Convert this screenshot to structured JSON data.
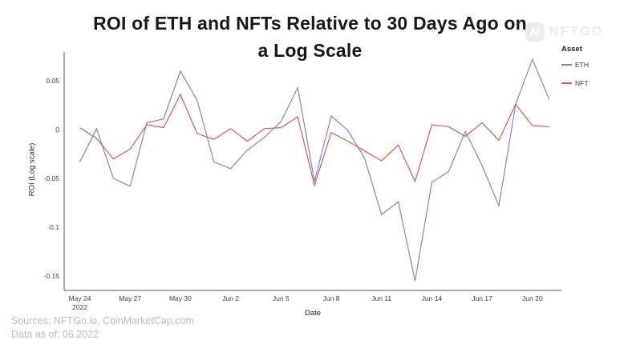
{
  "header": {
    "title_line1": "ROI of ETH and NFTs Relative to 30 Days Ago on",
    "title_line2": "a Log Scale"
  },
  "logo": {
    "icon_letter": "N",
    "text": "NFTGO"
  },
  "legend": {
    "title": "Asset",
    "items": [
      {
        "label": "ETH"
      },
      {
        "label": "NFT"
      }
    ]
  },
  "footer": {
    "sources": "Sources: NFTGo.io, CoinMarketCap.com",
    "data_as_of": "Data as of: 06.2022"
  },
  "chart_data": {
    "type": "line",
    "title": "ROI of ETH and NFTs Relative to 30 Days Ago on a Log Scale",
    "xlabel": "Date",
    "ylabel": "ROI (Log scale)",
    "grid": false,
    "legend_position": "top-right",
    "ylim": [
      -0.165,
      0.08
    ],
    "categories": [
      "May 24",
      "May 25",
      "May 26",
      "May 27",
      "May 28",
      "May 29",
      "May 30",
      "May 31",
      "Jun 1",
      "Jun 2",
      "Jun 3",
      "Jun 4",
      "Jun 5",
      "Jun 6",
      "Jun 7",
      "Jun 8",
      "Jun 9",
      "Jun 10",
      "Jun 11",
      "Jun 12",
      "Jun 13",
      "Jun 14",
      "Jun 15",
      "Jun 16",
      "Jun 17",
      "Jun 18",
      "Jun 19",
      "Jun 20",
      "Jun 21"
    ],
    "series": [
      {
        "name": "ETH",
        "color": "#7e83d6",
        "values": [
          -0.033,
          0.001,
          -0.05,
          -0.058,
          0.007,
          0.011,
          0.06,
          0.03,
          -0.033,
          -0.04,
          -0.021,
          -0.008,
          0.008,
          0.043,
          -0.053,
          0.014,
          -0.001,
          -0.03,
          -0.087,
          -0.074,
          -0.155,
          -0.054,
          -0.043,
          -0.002,
          -0.037,
          -0.078,
          0.026,
          0.072,
          0.031
        ]
      },
      {
        "name": "NFT",
        "color": "#df5749",
        "values": [
          0.002,
          -0.009,
          -0.03,
          -0.02,
          0.005,
          0.002,
          0.036,
          -0.004,
          -0.01,
          0.001,
          -0.012,
          0.001,
          0.002,
          0.013,
          -0.057,
          -0.003,
          -0.012,
          -0.022,
          -0.032,
          -0.016,
          -0.053,
          0.005,
          0.003,
          -0.007,
          0.007,
          -0.011,
          0.026,
          0.004,
          0.003
        ]
      }
    ],
    "y_ticks": [
      {
        "v": 0.05,
        "label": "0.05"
      },
      {
        "v": 0,
        "label": "0"
      },
      {
        "v": -0.05,
        "label": "-0.05"
      },
      {
        "v": -0.1,
        "label": "-0.1"
      },
      {
        "v": -0.15,
        "label": "-0.15"
      }
    ],
    "x_ticks": [
      {
        "i": 0,
        "label": "May 24",
        "sublabel": "2022"
      },
      {
        "i": 3,
        "label": "May 27"
      },
      {
        "i": 6,
        "label": "May 30"
      },
      {
        "i": 9,
        "label": "Jun 2"
      },
      {
        "i": 12,
        "label": "Jun 5"
      },
      {
        "i": 15,
        "label": "Jun 8"
      },
      {
        "i": 18,
        "label": "Jun 11"
      },
      {
        "i": 21,
        "label": "Jun 14"
      },
      {
        "i": 24,
        "label": "Jun 17"
      },
      {
        "i": 27,
        "label": "Jun 20"
      }
    ]
  }
}
